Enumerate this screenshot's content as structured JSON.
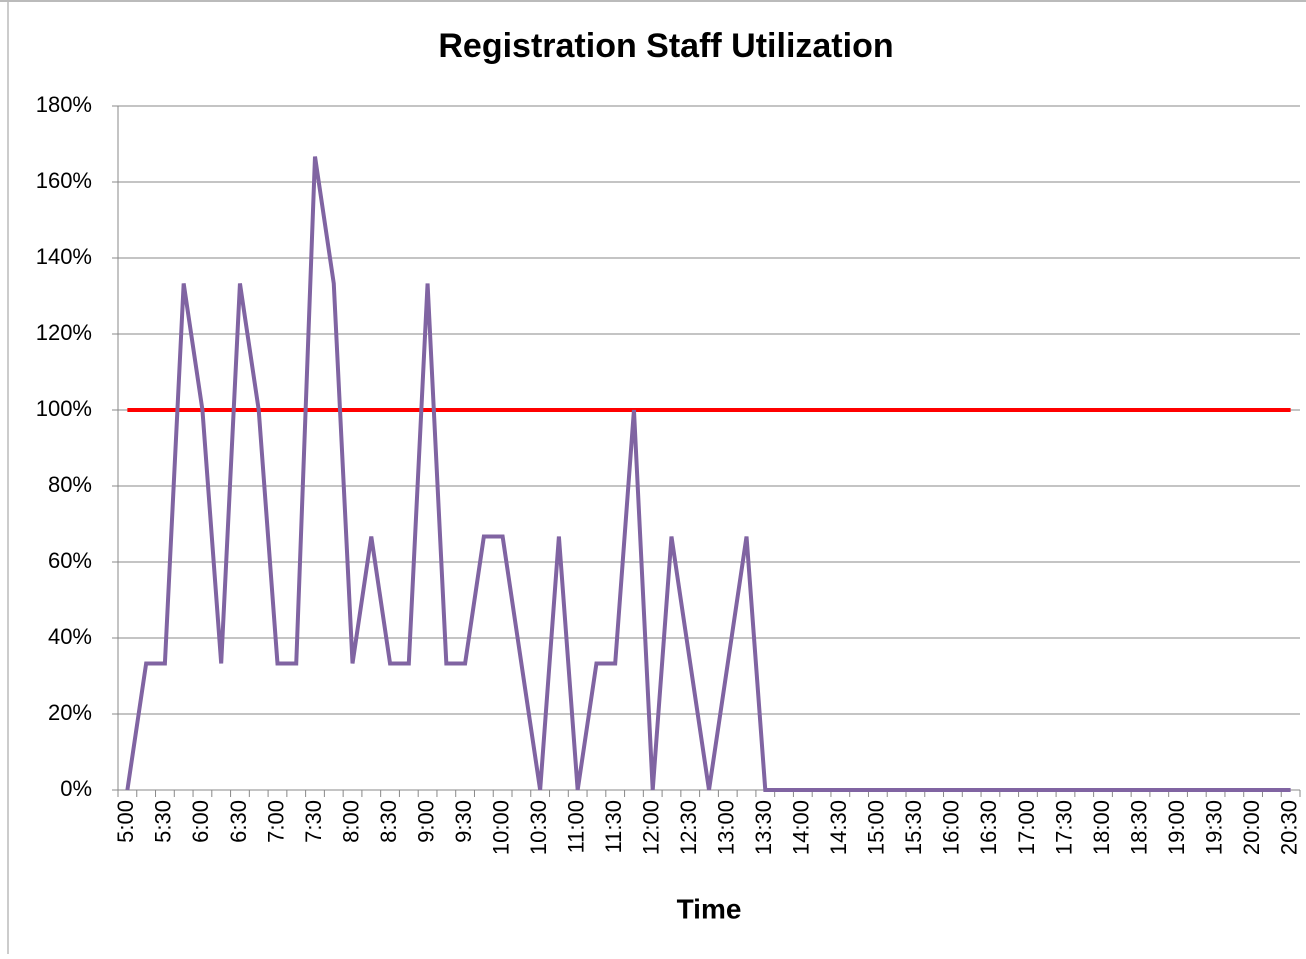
{
  "chart_data": {
    "type": "line",
    "title": "Registration Staff Utilization",
    "x_label": "Time",
    "categories": [
      "5:00",
      null,
      "5:30",
      null,
      "6:00",
      null,
      "6:30",
      null,
      "7:00",
      null,
      "7:30",
      null,
      "8:00",
      null,
      "8:30",
      null,
      "9:00",
      null,
      "9:30",
      null,
      "10:00",
      null,
      "10:30",
      null,
      "11:00",
      null,
      "11:30",
      null,
      "12:00",
      null,
      "12:30",
      null,
      "13:00",
      null,
      "13:30",
      null,
      "14:00",
      null,
      "14:30",
      null,
      "15:00",
      null,
      "15:30",
      null,
      "16:00",
      null,
      "16:30",
      null,
      "17:00",
      null,
      "17:30",
      null,
      "18:00",
      null,
      "18:30",
      null,
      "19:00",
      null,
      "19:30",
      null,
      "20:00",
      null,
      "20:30"
    ],
    "series": [
      {
        "color": "#8064a2",
        "values": [
          0,
          33.3,
          33.3,
          133.3,
          100,
          33.3,
          133.3,
          100,
          33.3,
          33.3,
          166.7,
          133.3,
          33.3,
          66.7,
          33.3,
          33.3,
          133.3,
          33.3,
          33.3,
          66.7,
          66.7,
          33.3,
          0,
          66.7,
          0,
          33.3,
          33.3,
          100,
          0,
          66.7,
          33.3,
          0,
          33.3,
          66.7,
          0,
          0,
          0,
          0,
          0,
          0,
          0,
          0,
          0,
          0,
          0,
          0,
          0,
          0,
          0,
          0,
          0,
          0,
          0,
          0,
          0,
          0,
          0,
          0,
          0,
          0,
          0,
          0,
          0
        ]
      },
      {
        "color": "#ff0000",
        "values": [
          100,
          100,
          100,
          100,
          100,
          100,
          100,
          100,
          100,
          100,
          100,
          100,
          100,
          100,
          100,
          100,
          100,
          100,
          100,
          100,
          100,
          100,
          100,
          100,
          100,
          100,
          100,
          100,
          100,
          100,
          100,
          100,
          100,
          100,
          100,
          100,
          100,
          100,
          100,
          100,
          100,
          100,
          100,
          100,
          100,
          100,
          100,
          100,
          100,
          100,
          100,
          100,
          100,
          100,
          100,
          100,
          100,
          100,
          100,
          100,
          100,
          100,
          100
        ]
      }
    ],
    "ylim": [
      0,
      180
    ],
    "yticks": [
      {
        "value": 0,
        "label": "0%"
      },
      {
        "value": 20,
        "label": "20%"
      },
      {
        "value": 40,
        "label": "40%"
      },
      {
        "value": 60,
        "label": "60%"
      },
      {
        "value": 80,
        "label": "80%"
      },
      {
        "value": 100,
        "label": "100%"
      },
      {
        "value": 120,
        "label": "120%"
      },
      {
        "value": 140,
        "label": "140%"
      },
      {
        "value": 160,
        "label": "160%"
      },
      {
        "value": 180,
        "label": "180%"
      }
    ],
    "grid": true
  }
}
